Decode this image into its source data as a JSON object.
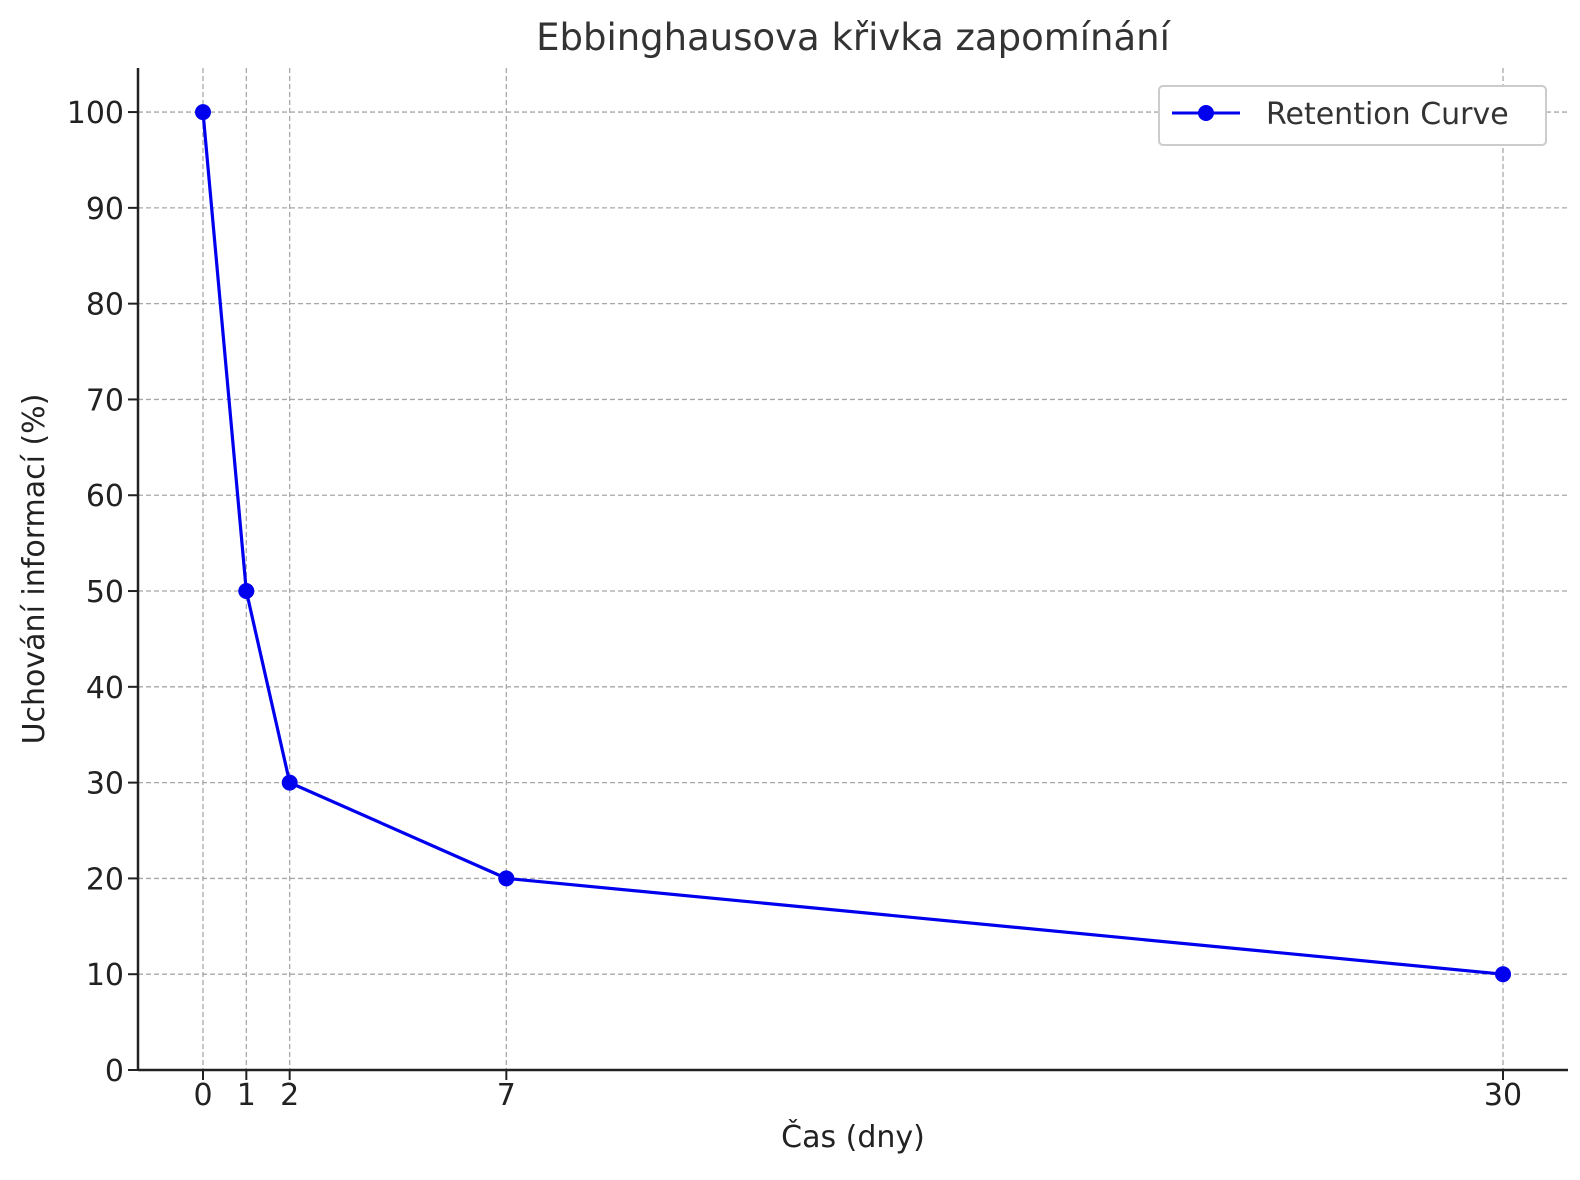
{
  "chart_data": {
    "type": "line",
    "title": "Ebbinghausova křivka zapomínání",
    "xlabel": "Čas (dny)",
    "ylabel": "Uchování informací (%)",
    "x": [
      0,
      1,
      2,
      7,
      30
    ],
    "x_ticks": [
      0,
      1,
      2,
      7,
      30
    ],
    "y_ticks": [
      0,
      10,
      20,
      30,
      40,
      50,
      60,
      70,
      80,
      90,
      100
    ],
    "xlim": [
      -1.5,
      31.5
    ],
    "ylim": [
      0,
      104.6
    ],
    "grid": true,
    "legend_position": "top-right",
    "series": [
      {
        "name": "Retention Curve",
        "color": "#0000ee",
        "marker": "circle",
        "values": [
          100,
          50,
          30,
          20,
          10
        ]
      }
    ]
  }
}
